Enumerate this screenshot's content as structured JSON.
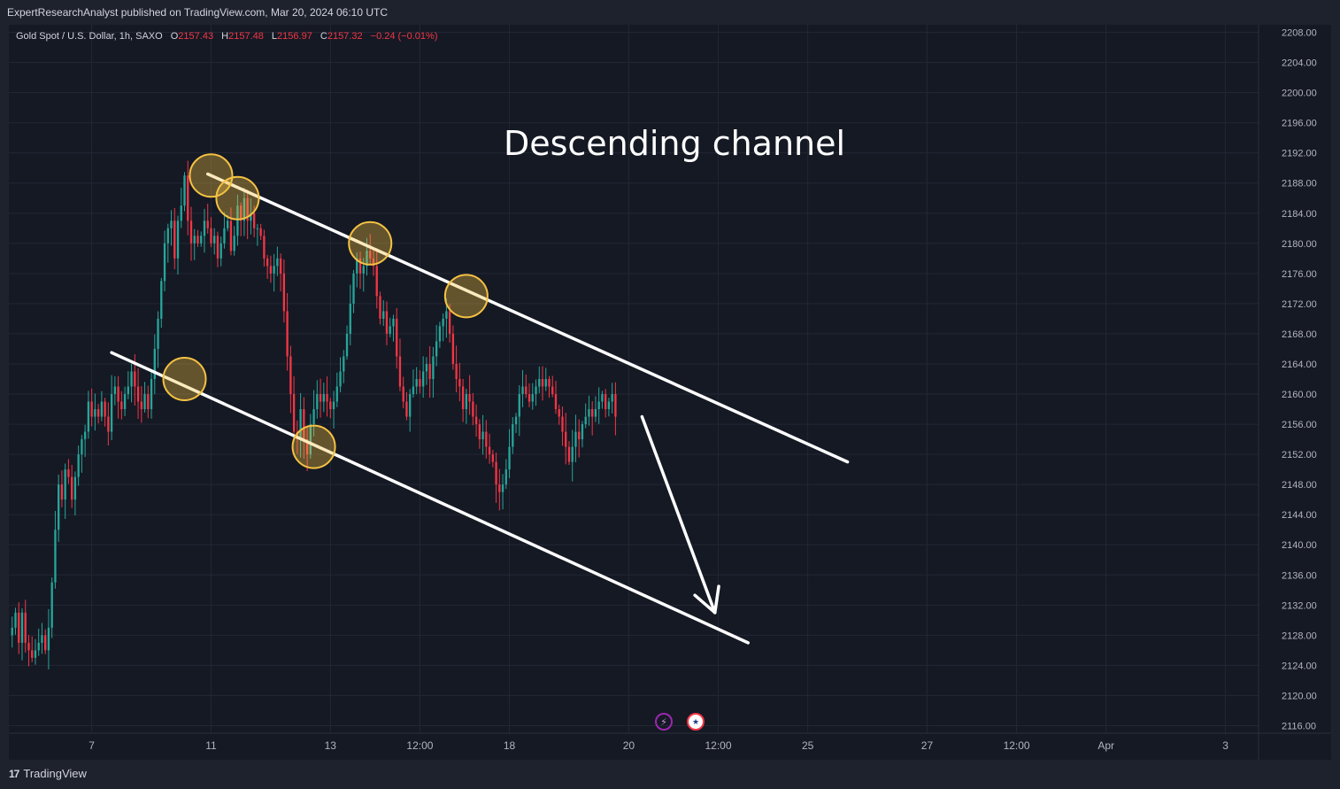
{
  "header": {
    "published_text": "ExpertResearchAnalyst published on TradingView.com, Mar 20, 2024 06:10 UTC"
  },
  "legend": {
    "symbol": "Gold Spot / U.S. Dollar, 1h, SAXO",
    "o_label": "O",
    "o_value": "2157.43",
    "h_label": "H",
    "h_value": "2157.48",
    "l_label": "L",
    "l_value": "2156.97",
    "c_label": "C",
    "c_value": "2157.32",
    "change": "−0.24 (−0.01%)"
  },
  "footer": {
    "logo_text": "TradingView",
    "logo_mark": "17"
  },
  "colors": {
    "background": "#151924",
    "up": "#26a69a",
    "down": "#f23645",
    "grid": "#232733",
    "axis_text": "#b2b5be",
    "annotation": "#ffffff",
    "touch_circle": "#f5c242"
  },
  "icons": [
    "lightning-icon",
    "us-flag-icon"
  ],
  "chart_data": {
    "type": "candlestick",
    "annotation_title": "Descending channel",
    "y_ticks": [
      "2116.00",
      "2120.00",
      "2124.00",
      "2128.00",
      "2132.00",
      "2136.00",
      "2140.00",
      "2144.00",
      "2148.00",
      "2152.00",
      "2156.00",
      "2160.00",
      "2164.00",
      "2168.00",
      "2172.00",
      "2176.00",
      "2180.00",
      "2184.00",
      "2188.00",
      "2192.00",
      "2196.00",
      "2200.00",
      "2204.00",
      "2208.00"
    ],
    "ylim": [
      2115,
      2209
    ],
    "x_ticks": [
      {
        "label": "7",
        "bar": 24
      },
      {
        "label": "11",
        "bar": 60
      },
      {
        "label": "13",
        "bar": 96
      },
      {
        "label": "12:00",
        "bar": 123
      },
      {
        "label": "18",
        "bar": 150
      },
      {
        "label": "20",
        "bar": 186
      },
      {
        "label": "12:00",
        "bar": 213
      },
      {
        "label": "25",
        "bar": 240
      },
      {
        "label": "27",
        "bar": 276
      },
      {
        "label": "12:00",
        "bar": 303
      },
      {
        "label": "Apr",
        "bar": 330
      },
      {
        "label": "3",
        "bar": 366
      }
    ],
    "x_range_bars": [
      -1,
      376
    ],
    "closes": [
      2129,
      2131,
      2127,
      2131,
      2127,
      2126,
      2125,
      2126,
      2127,
      2128,
      2126,
      2129,
      2135,
      2142,
      2148,
      2146,
      2150,
      2149,
      2146,
      2149,
      2152,
      2154,
      2155,
      2159,
      2157,
      2158,
      2157,
      2159,
      2157,
      2155,
      2160,
      2161,
      2159,
      2158,
      2160,
      2161,
      2163,
      2161,
      2159,
      2158,
      2160,
      2158,
      2162,
      2166,
      2170,
      2175,
      2180,
      2182,
      2183,
      2178,
      2183,
      2185,
      2189,
      2183,
      2180,
      2181,
      2180,
      2181,
      2183,
      2182,
      2180,
      2181,
      2178,
      2180,
      2182,
      2183,
      2179,
      2181,
      2185,
      2183,
      2186,
      2183,
      2184,
      2182,
      2182,
      2181,
      2178,
      2177,
      2176,
      2177,
      2178,
      2176,
      2171,
      2165,
      2160,
      2155,
      2154,
      2158,
      2154,
      2152,
      2156,
      2158,
      2160,
      2159,
      2160,
      2159,
      2158,
      2159,
      2161,
      2163,
      2165,
      2168,
      2172,
      2176,
      2178,
      2176,
      2177,
      2179,
      2178,
      2177,
      2173,
      2170,
      2171,
      2168,
      2169,
      2170,
      2165,
      2161,
      2159,
      2157,
      2160,
      2161,
      2162,
      2161,
      2163,
      2164,
      2162,
      2165,
      2167,
      2169,
      2170,
      2171,
      2168,
      2164,
      2162,
      2161,
      2158,
      2160,
      2159,
      2157,
      2156,
      2154,
      2155,
      2153,
      2152,
      2151,
      2148,
      2147,
      2148,
      2150,
      2153,
      2156,
      2157,
      2160,
      2161,
      2160,
      2159,
      2160,
      2161,
      2162,
      2161,
      2162,
      2161,
      2160,
      2158,
      2157,
      2155,
      2153,
      2151,
      2153,
      2155,
      2154,
      2156,
      2157,
      2158,
      2157,
      2158,
      2159,
      2160,
      2158,
      2159,
      2160,
      2157
    ],
    "touch_points": [
      {
        "bar": 60,
        "value": 2189,
        "line": "upper"
      },
      {
        "bar": 68,
        "value": 2186,
        "line": "upper"
      },
      {
        "bar": 108,
        "value": 2180,
        "line": "upper"
      },
      {
        "bar": 137,
        "value": 2173,
        "line": "upper"
      },
      {
        "bar": 52,
        "value": 2162,
        "line": "lower"
      },
      {
        "bar": 91,
        "value": 2153,
        "line": "lower"
      }
    ],
    "upper_line": [
      {
        "bar": 59,
        "value": 2189.2
      },
      {
        "bar": 252,
        "value": 2151
      }
    ],
    "lower_line": [
      {
        "bar": 30,
        "value": 2165.5
      },
      {
        "bar": 222,
        "value": 2127
      }
    ],
    "forecast_arrow": [
      {
        "bar": 190,
        "value": 2157
      },
      {
        "bar": 212,
        "value": 2131
      }
    ]
  }
}
